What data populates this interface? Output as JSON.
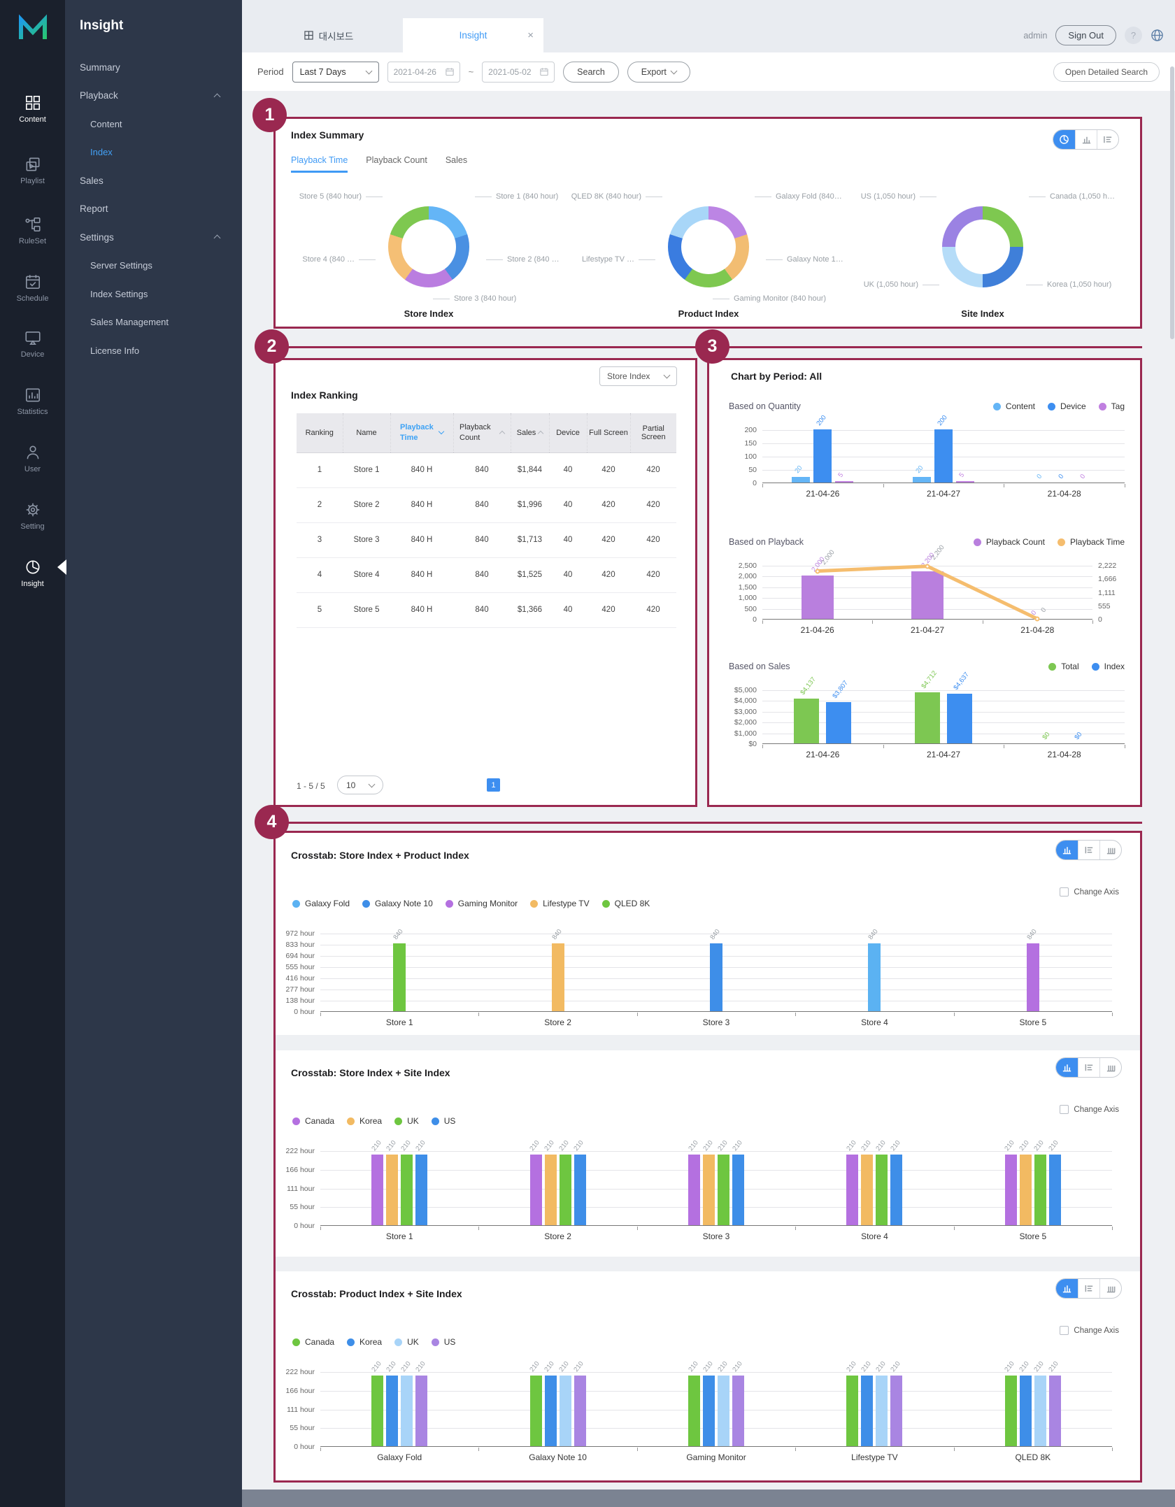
{
  "rail": {
    "items": [
      {
        "label": "Content"
      },
      {
        "label": "Playlist"
      },
      {
        "label": "RuleSet"
      },
      {
        "label": "Schedule"
      },
      {
        "label": "Device"
      },
      {
        "label": "Statistics"
      },
      {
        "label": "User"
      },
      {
        "label": "Setting"
      },
      {
        "label": "Insight"
      }
    ]
  },
  "sidebar": {
    "title": "Insight",
    "items": [
      {
        "label": "Summary",
        "level": 1
      },
      {
        "label": "Playback",
        "level": 1,
        "expanded": true
      },
      {
        "label": "Content",
        "level": 2
      },
      {
        "label": "Index",
        "level": 2,
        "active": true
      },
      {
        "label": "Sales",
        "level": 1
      },
      {
        "label": "Report",
        "level": 1
      },
      {
        "label": "Settings",
        "level": 1,
        "expanded": true
      },
      {
        "label": "Server Settings",
        "level": 2
      },
      {
        "label": "Index Settings",
        "level": 2
      },
      {
        "label": "Sales Management",
        "level": 2
      },
      {
        "label": "License Info",
        "level": 2
      }
    ]
  },
  "header": {
    "tabs": [
      {
        "label": "대시보드"
      },
      {
        "label": "Insight",
        "active": true
      }
    ],
    "user": "admin",
    "sign_out": "Sign Out",
    "help": "?"
  },
  "toolbar": {
    "period_label": "Period",
    "period_value": "Last 7 Days",
    "date_from": "2021-04-26",
    "date_to": "2021-05-02",
    "tilde": "~",
    "search_label": "Search",
    "export_label": "Export",
    "open_detailed_label": "Open Detailed Search"
  },
  "callouts": [
    "1",
    "2",
    "3",
    "4"
  ],
  "index_summary": {
    "title": "Index Summary",
    "tabs": [
      "Playback Time",
      "Playback Count",
      "Sales"
    ],
    "active_tab": "Playback Time",
    "donuts": [
      {
        "title": "Store Index",
        "slices": [
          {
            "name": "Store 1",
            "color": "#64b5f6",
            "pct": 20
          },
          {
            "name": "Store 2",
            "color": "#4a90e2",
            "pct": 20
          },
          {
            "name": "Store 3",
            "color": "#ba7de0",
            "pct": 20
          },
          {
            "name": "Store 4",
            "color": "#f5bf75",
            "pct": 20
          },
          {
            "name": "Store 5",
            "color": "#7ec850",
            "pct": 20
          }
        ],
        "labels": [
          {
            "pos": "tl",
            "text": "Store 5 (840 hour)"
          },
          {
            "pos": "tr",
            "text": "Store 1 (840 hour)"
          },
          {
            "pos": "ml",
            "text": "Store 4 (840 …"
          },
          {
            "pos": "mr",
            "text": "Store 2 (840 …"
          },
          {
            "pos": "b",
            "text": "Store 3 (840 hour)"
          }
        ]
      },
      {
        "title": "Product Index",
        "slices": [
          {
            "name": "Galaxy Fold",
            "color": "#bc85e4",
            "pct": 20
          },
          {
            "name": "Galaxy Note 10",
            "color": "#f2bd72",
            "pct": 20
          },
          {
            "name": "Gaming Monitor",
            "color": "#7ec850",
            "pct": 20
          },
          {
            "name": "Lifestype TV",
            "color": "#3a7ce0",
            "pct": 20
          },
          {
            "name": "QLED 8K",
            "color": "#a8d6f8",
            "pct": 20
          }
        ],
        "labels": [
          {
            "pos": "tl",
            "text": "QLED 8K (840 hour)"
          },
          {
            "pos": "tr",
            "text": "Galaxy Fold (840…"
          },
          {
            "pos": "ml",
            "text": "Lifestype TV …"
          },
          {
            "pos": "mr",
            "text": "Galaxy Note 1…"
          },
          {
            "pos": "b",
            "text": "Gaming Monitor (840 hour)"
          }
        ]
      },
      {
        "title": "Site Index",
        "slices": [
          {
            "name": "Canada",
            "color": "#7ec850",
            "pct": 25
          },
          {
            "name": "Korea",
            "color": "#3f7fd9",
            "pct": 25
          },
          {
            "name": "UK",
            "color": "#b5dcf8",
            "pct": 25
          },
          {
            "name": "US",
            "color": "#9b82e3",
            "pct": 25
          }
        ],
        "labels": [
          {
            "pos": "tl",
            "text": "US (1,050 hour)"
          },
          {
            "pos": "tr",
            "text": "Canada (1,050 h…"
          },
          {
            "pos": "bl",
            "text": "UK (1,050 hour)"
          },
          {
            "pos": "br",
            "text": "Korea (1,050 hour)"
          }
        ]
      }
    ]
  },
  "index_ranking": {
    "title": "Index Ranking",
    "filter": "Store Index",
    "columns": [
      {
        "label": "Ranking"
      },
      {
        "label": "Name"
      },
      {
        "label": "Playback Time",
        "sort": "desc",
        "active": true
      },
      {
        "label": "Playback Count",
        "sort": "asc"
      },
      {
        "label": "Sales",
        "sort": "asc"
      },
      {
        "label": "Device"
      },
      {
        "label": "Full Screen"
      },
      {
        "label": "Partial Screen"
      }
    ],
    "rows": [
      [
        "1",
        "Store 1",
        "840 H",
        "840",
        "$1,844",
        "40",
        "420",
        "420"
      ],
      [
        "2",
        "Store 2",
        "840 H",
        "840",
        "$1,996",
        "40",
        "420",
        "420"
      ],
      [
        "3",
        "Store 3",
        "840 H",
        "840",
        "$1,713",
        "40",
        "420",
        "420"
      ],
      [
        "4",
        "Store 4",
        "840 H",
        "840",
        "$1,525",
        "40",
        "420",
        "420"
      ],
      [
        "5",
        "Store 5",
        "840 H",
        "840",
        "$1,366",
        "40",
        "420",
        "420"
      ]
    ],
    "pagination": {
      "range": "1 - 5 / 5",
      "page_size": "10",
      "page": "1"
    }
  },
  "chart_by_period": {
    "title": "Chart by Period: All",
    "charts": [
      {
        "name": "Based on Quantity",
        "type": "bar",
        "legend": [
          {
            "label": "Content",
            "color": "#64b5f6"
          },
          {
            "label": "Device",
            "color": "#3d8ef0"
          },
          {
            "label": "Tag",
            "color": "#c07fe0"
          }
        ],
        "x": [
          "21-04-26",
          "21-04-27",
          "21-04-28"
        ],
        "yticks": [
          "200",
          "150",
          "100",
          "50",
          "0"
        ],
        "ymax": 200,
        "series": [
          {
            "name": "Content",
            "color": "#64b5f6",
            "values": [
              20,
              20,
              0
            ],
            "labels": [
              "20",
              "20",
              "0"
            ]
          },
          {
            "name": "Device",
            "color": "#3d8ef0",
            "values": [
              200,
              200,
              0
            ],
            "labels": [
              "200",
              "200",
              "0"
            ]
          },
          {
            "name": "Tag",
            "color": "#c07fe0",
            "values": [
              5,
              5,
              0
            ],
            "labels": [
              "5",
              "5",
              "0"
            ]
          }
        ]
      },
      {
        "name": "Based on Playback",
        "type": "bar+line",
        "legend": [
          {
            "label": "Playback Count",
            "color": "#b97fde"
          },
          {
            "label": "Playback Time",
            "color": "#f5bd6e"
          }
        ],
        "x": [
          "21-04-26",
          "21-04-27",
          "21-04-28"
        ],
        "yticks": [
          "2,500",
          "2,000",
          "1,500",
          "1,000",
          "500",
          "0"
        ],
        "yticks_right": [
          "2,222",
          "1,666",
          "1,111",
          "555",
          "0"
        ],
        "ymax": 2500,
        "series": [
          {
            "name": "Playback Count",
            "color": "#b97fde",
            "values": [
              2000,
              2200,
              0
            ],
            "labels": [
              "2,000",
              "2,200",
              "0"
            ]
          }
        ],
        "line": {
          "name": "Playback Time",
          "color": "#f5bd6e",
          "ymax": 2222,
          "values": [
            2000,
            2200,
            0
          ],
          "labels": [
            "2,000",
            "2,200",
            "0"
          ]
        }
      },
      {
        "name": "Based on Sales",
        "type": "bar",
        "legend": [
          {
            "label": "Total",
            "color": "#7dc752"
          },
          {
            "label": "Index",
            "color": "#3d8ef0"
          }
        ],
        "x": [
          "21-04-26",
          "21-04-27",
          "21-04-28"
        ],
        "yticks": [
          "$5,000",
          "$4,000",
          "$3,000",
          "$2,000",
          "$1,000",
          "$0"
        ],
        "ymax": 5000,
        "series": [
          {
            "name": "Total",
            "color": "#7dc752",
            "values": [
              4137,
              4712,
              0
            ],
            "labels": [
              "$4,137",
              "$4,712",
              "$0"
            ]
          },
          {
            "name": "Index",
            "color": "#3d8ef0",
            "values": [
              3807,
              4637,
              0
            ],
            "labels": [
              "$3,807",
              "$4,637",
              "$0"
            ]
          }
        ]
      }
    ]
  },
  "crosstabs": {
    "change_axis": "Change Axis",
    "cards": [
      {
        "title": "Crosstab: Store Index + Product Index",
        "type": "bar",
        "legend": [
          {
            "label": "Galaxy Fold",
            "color": "#5bb2f2"
          },
          {
            "label": "Galaxy Note 10",
            "color": "#3e8ee8"
          },
          {
            "label": "Gaming Monitor",
            "color": "#b470e0"
          },
          {
            "label": "Lifestype TV",
            "color": "#f2ba62"
          },
          {
            "label": "QLED 8K",
            "color": "#6ec640"
          }
        ],
        "yticks": [
          "972 hour",
          "833 hour",
          "694 hour",
          "555 hour",
          "416 hour",
          "277 hour",
          "138 hour",
          "0 hour"
        ],
        "ymax": 972,
        "categories": [
          "Store 1",
          "Store 2",
          "Store 3",
          "Store 4",
          "Store 5"
        ],
        "groups": [
          [
            {
              "value": 840,
              "label": "840",
              "color": "#6ec640"
            }
          ],
          [
            {
              "value": 840,
              "label": "840",
              "color": "#f2ba62"
            }
          ],
          [
            {
              "value": 840,
              "label": "840",
              "color": "#3e8ee8"
            }
          ],
          [
            {
              "value": 840,
              "label": "840",
              "color": "#5bb2f2"
            }
          ],
          [
            {
              "value": 840,
              "label": "840",
              "color": "#b470e0"
            }
          ]
        ]
      },
      {
        "title": "Crosstab: Store Index + Site Index",
        "type": "bar",
        "legend": [
          {
            "label": "Canada",
            "color": "#b470e0"
          },
          {
            "label": "Korea",
            "color": "#f2ba62"
          },
          {
            "label": "UK",
            "color": "#6ec640"
          },
          {
            "label": "US",
            "color": "#3e8ee8"
          }
        ],
        "yticks": [
          "222 hour",
          "166 hour",
          "111 hour",
          "55 hour",
          "0 hour"
        ],
        "ymax": 222,
        "categories": [
          "Store 1",
          "Store 2",
          "Store 3",
          "Store 4",
          "Store 5"
        ],
        "groups": [
          [
            {
              "value": 210,
              "label": "210",
              "color": "#b470e0"
            },
            {
              "value": 210,
              "label": "210",
              "color": "#f2ba62"
            },
            {
              "value": 210,
              "label": "210",
              "color": "#6ec640"
            },
            {
              "value": 210,
              "label": "210",
              "color": "#3e8ee8"
            }
          ],
          [
            {
              "value": 210,
              "label": "210",
              "color": "#b470e0"
            },
            {
              "value": 210,
              "label": "210",
              "color": "#f2ba62"
            },
            {
              "value": 210,
              "label": "210",
              "color": "#6ec640"
            },
            {
              "value": 210,
              "label": "210",
              "color": "#3e8ee8"
            }
          ],
          [
            {
              "value": 210,
              "label": "210",
              "color": "#b470e0"
            },
            {
              "value": 210,
              "label": "210",
              "color": "#f2ba62"
            },
            {
              "value": 210,
              "label": "210",
              "color": "#6ec640"
            },
            {
              "value": 210,
              "label": "210",
              "color": "#3e8ee8"
            }
          ],
          [
            {
              "value": 210,
              "label": "210",
              "color": "#b470e0"
            },
            {
              "value": 210,
              "label": "210",
              "color": "#f2ba62"
            },
            {
              "value": 210,
              "label": "210",
              "color": "#6ec640"
            },
            {
              "value": 210,
              "label": "210",
              "color": "#3e8ee8"
            }
          ],
          [
            {
              "value": 210,
              "label": "210",
              "color": "#b470e0"
            },
            {
              "value": 210,
              "label": "210",
              "color": "#f2ba62"
            },
            {
              "value": 210,
              "label": "210",
              "color": "#6ec640"
            },
            {
              "value": 210,
              "label": "210",
              "color": "#3e8ee8"
            }
          ]
        ]
      },
      {
        "title": "Crosstab: Product Index + Site Index",
        "type": "bar",
        "legend": [
          {
            "label": "Canada",
            "color": "#6ec640"
          },
          {
            "label": "Korea",
            "color": "#3e8ee8"
          },
          {
            "label": "UK",
            "color": "#a8d4f8"
          },
          {
            "label": "US",
            "color": "#a985e2"
          }
        ],
        "yticks": [
          "222 hour",
          "166 hour",
          "111 hour",
          "55 hour",
          "0 hour"
        ],
        "ymax": 222,
        "categories": [
          "Galaxy Fold",
          "Galaxy Note 10",
          "Gaming Monitor",
          "Lifestype TV",
          "QLED 8K"
        ],
        "groups": [
          [
            {
              "value": 210,
              "label": "210",
              "color": "#6ec640"
            },
            {
              "value": 210,
              "label": "210",
              "color": "#3e8ee8"
            },
            {
              "value": 210,
              "label": "210",
              "color": "#a8d4f8"
            },
            {
              "value": 210,
              "label": "210",
              "color": "#a985e2"
            }
          ],
          [
            {
              "value": 210,
              "label": "210",
              "color": "#6ec640"
            },
            {
              "value": 210,
              "label": "210",
              "color": "#3e8ee8"
            },
            {
              "value": 210,
              "label": "210",
              "color": "#a8d4f8"
            },
            {
              "value": 210,
              "label": "210",
              "color": "#a985e2"
            }
          ],
          [
            {
              "value": 210,
              "label": "210",
              "color": "#6ec640"
            },
            {
              "value": 210,
              "label": "210",
              "color": "#3e8ee8"
            },
            {
              "value": 210,
              "label": "210",
              "color": "#a8d4f8"
            },
            {
              "value": 210,
              "label": "210",
              "color": "#a985e2"
            }
          ],
          [
            {
              "value": 210,
              "label": "210",
              "color": "#6ec640"
            },
            {
              "value": 210,
              "label": "210",
              "color": "#3e8ee8"
            },
            {
              "value": 210,
              "label": "210",
              "color": "#a8d4f8"
            },
            {
              "value": 210,
              "label": "210",
              "color": "#a985e2"
            }
          ],
          [
            {
              "value": 210,
              "label": "210",
              "color": "#6ec640"
            },
            {
              "value": 210,
              "label": "210",
              "color": "#3e8ee8"
            },
            {
              "value": 210,
              "label": "210",
              "color": "#a8d4f8"
            },
            {
              "value": 210,
              "label": "210",
              "color": "#a985e2"
            }
          ]
        ]
      }
    ]
  }
}
